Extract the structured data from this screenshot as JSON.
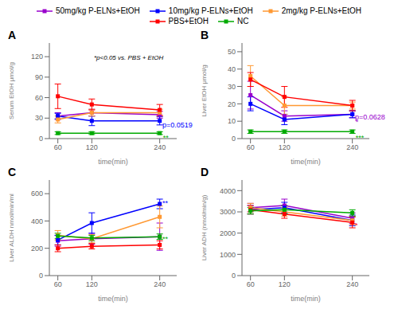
{
  "chart_data": [
    {
      "type": "line",
      "title": "A",
      "x_label": "time(min)",
      "y_label": "Serum EtOH μmol/g",
      "x": [
        60,
        120,
        240
      ],
      "xlim": [
        45,
        270
      ],
      "xticks": [
        60,
        120,
        240
      ],
      "ylim": [
        0,
        140
      ],
      "yticks": [
        0,
        30,
        60,
        90,
        120
      ],
      "grid": false,
      "legend": "top",
      "marker": "square",
      "series": [
        {
          "name": "50mg/kg P-ELNs+EtOH",
          "color": "#9900CC",
          "values": [
            33,
            38,
            35
          ],
          "errors": [
            5,
            5,
            5
          ]
        },
        {
          "name": "10mg/kg P-ELNs+EtOH",
          "color": "#0000FF",
          "values": [
            33,
            26,
            26
          ],
          "errors": [
            4,
            7,
            6
          ]
        },
        {
          "name": "2mg/kg P-ELNs+EtOH",
          "color": "#FF9933",
          "values": [
            28,
            38,
            38
          ],
          "errors": [
            5,
            5,
            5
          ]
        },
        {
          "name": "PBS+EtOH",
          "color": "#FF0000",
          "values": [
            62,
            50,
            42
          ],
          "errors": [
            18,
            8,
            8
          ]
        },
        {
          "name": "NC",
          "color": "#00AA00",
          "values": [
            8,
            8,
            8
          ],
          "errors": [
            2,
            2,
            2
          ]
        }
      ],
      "annotations": [
        {
          "text": "*p<0.05 vs. PBS + EtOH",
          "color": "#000000"
        },
        {
          "text": "p=0.0519",
          "x": 242,
          "y": 20,
          "color": "#0000FF"
        },
        {
          "text": "**",
          "x": 243,
          "y": 1,
          "color": "#00AA00"
        }
      ]
    },
    {
      "type": "line",
      "title": "B",
      "x_label": "time(min)",
      "y_label": "Liver EtOH μmol/g",
      "x": [
        60,
        120,
        240
      ],
      "xlim": [
        45,
        270
      ],
      "xticks": [
        60,
        120,
        240
      ],
      "ylim": [
        0,
        55
      ],
      "yticks": [
        0,
        10,
        20,
        30,
        40,
        50
      ],
      "grid": false,
      "marker": "square",
      "series": [
        {
          "name": "50mg/kg P-ELNs+EtOH",
          "color": "#9900CC",
          "values": [
            25,
            13,
            14
          ],
          "errors": [
            8,
            3,
            2
          ]
        },
        {
          "name": "10mg/kg P-ELNs+EtOH",
          "color": "#0000FF",
          "values": [
            20,
            11,
            14
          ],
          "errors": [
            4,
            3,
            2
          ]
        },
        {
          "name": "2mg/kg P-ELNs+EtOH",
          "color": "#FF9933",
          "values": [
            36,
            19,
            19
          ],
          "errors": [
            6,
            5,
            2
          ]
        },
        {
          "name": "PBS+EtOH",
          "color": "#FF0000",
          "values": [
            34,
            24,
            19
          ],
          "errors": [
            4,
            6,
            3
          ]
        },
        {
          "name": "NC",
          "color": "#00AA00",
          "values": [
            4,
            4,
            4
          ],
          "errors": [
            1,
            1,
            1
          ]
        }
      ],
      "annotations": [
        {
          "text": "p=0.0628",
          "x": 242,
          "y": 12.5,
          "color": "#9900CC"
        },
        {
          "text": "*",
          "x": 243,
          "y": 9.5,
          "color": "#9900CC"
        },
        {
          "text": "***",
          "x": 243,
          "y": 0.5,
          "color": "#00AA00"
        }
      ]
    },
    {
      "type": "line",
      "title": "C",
      "x_label": "time(min)",
      "y_label": "Liver ALDH nmol/min/ml",
      "x": [
        60,
        120,
        240
      ],
      "xlim": [
        45,
        270
      ],
      "xticks": [
        60,
        120,
        240
      ],
      "ylim": [
        0,
        700
      ],
      "yticks": [
        0,
        200,
        400,
        600
      ],
      "grid": false,
      "marker": "square",
      "series": [
        {
          "name": "50mg/kg P-ELNs+EtOH",
          "color": "#9900CC",
          "values": [
            255,
            270,
            285
          ],
          "errors": [
            40,
            40,
            100
          ]
        },
        {
          "name": "10mg/kg P-ELNs+EtOH",
          "color": "#0000FF",
          "values": [
            260,
            385,
            525
          ],
          "errors": [
            35,
            75,
            35
          ]
        },
        {
          "name": "2mg/kg P-ELNs+EtOH",
          "color": "#FF9933",
          "values": [
            295,
            270,
            430
          ],
          "errors": [
            35,
            30,
            80
          ]
        },
        {
          "name": "PBS+EtOH",
          "color": "#FF0000",
          "values": [
            200,
            215,
            225
          ],
          "errors": [
            25,
            20,
            30
          ]
        },
        {
          "name": "NC",
          "color": "#00AA00",
          "values": [
            290,
            275,
            285
          ],
          "errors": [
            20,
            20,
            20
          ]
        }
      ],
      "annotations": [
        {
          "text": "**",
          "x": 242,
          "y": 530,
          "color": "#0000FF"
        },
        {
          "text": "**",
          "x": 242,
          "y": 272,
          "color": "#00AA00"
        }
      ]
    },
    {
      "type": "line",
      "title": "D",
      "x_label": "time(min)",
      "y_label": "Liver ADH (nmol/min/g)",
      "x": [
        60,
        120,
        240
      ],
      "xlim": [
        45,
        270
      ],
      "xticks": [
        60,
        120,
        240
      ],
      "ylim": [
        0,
        4500
      ],
      "yticks": [
        0,
        1000,
        2000,
        3000,
        4000
      ],
      "grid": false,
      "marker": "square",
      "series": [
        {
          "name": "50mg/kg P-ELNs+EtOH",
          "color": "#9900CC",
          "values": [
            3200,
            3300,
            2700
          ],
          "errors": [
            200,
            300,
            250
          ]
        },
        {
          "name": "10mg/kg P-ELNs+EtOH",
          "color": "#0000FF",
          "values": [
            3100,
            3200,
            2600
          ],
          "errors": [
            200,
            250,
            250
          ]
        },
        {
          "name": "2mg/kg P-ELNs+EtOH",
          "color": "#FF9933",
          "values": [
            3200,
            3000,
            2600
          ],
          "errors": [
            200,
            200,
            200
          ]
        },
        {
          "name": "PBS+EtOH",
          "color": "#FF0000",
          "values": [
            3100,
            2900,
            2500
          ],
          "errors": [
            200,
            200,
            250
          ]
        },
        {
          "name": "NC",
          "color": "#00AA00",
          "values": [
            3050,
            3100,
            2950
          ],
          "errors": [
            150,
            200,
            150
          ]
        }
      ],
      "annotations": [
        {
          "text": "*",
          "x": 242,
          "y": 2380,
          "color": "#FF0000"
        }
      ]
    }
  ]
}
